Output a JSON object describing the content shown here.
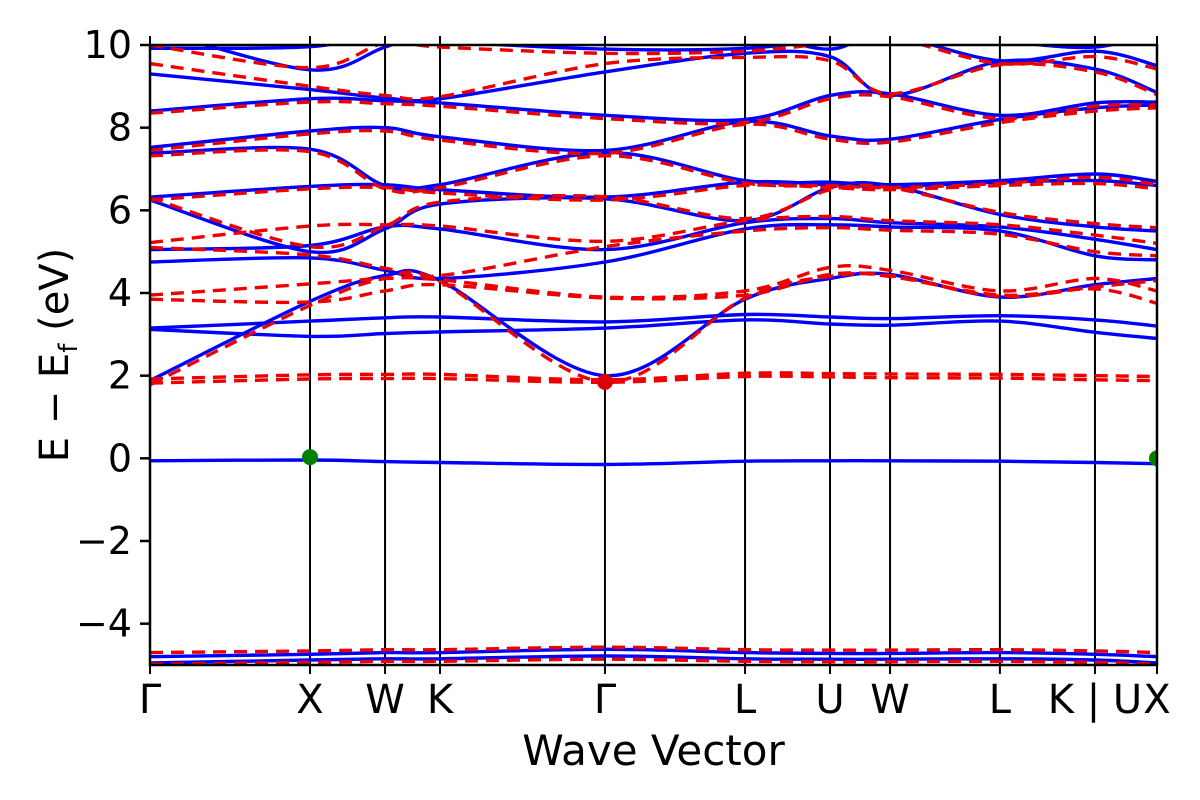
{
  "figure": {
    "xlabel": "Wave Vector",
    "ylabel_prefix": "E − E",
    "ylabel_sub": "f",
    "ylabel_suffix": " (eV)"
  },
  "chart_data": {
    "type": "line",
    "title": "",
    "xlabel": "Wave Vector",
    "ylabel": "E − E_f (eV)",
    "ylim": [
      -5,
      10
    ],
    "yticks": [
      10,
      8,
      6,
      4,
      2,
      0,
      -2,
      -4
    ],
    "ytick_labels": [
      "10",
      "8",
      "6",
      "4",
      "2",
      "0",
      "−2",
      "−4"
    ],
    "k_labels": [
      "Γ",
      "X",
      "W",
      "K",
      "Γ",
      "L",
      "U",
      "W",
      "L",
      "K | U",
      "X"
    ],
    "k_positions": [
      0,
      0.1589,
      0.2334,
      0.288,
      0.4518,
      0.5909,
      0.6753,
      0.7349,
      0.844,
      0.9384,
      1.0
    ],
    "grid": "vertical-lines-at-k-points",
    "legend": "none",
    "colors": {
      "solid_bands": "#0000ff",
      "dashed_bands": "#ee0000",
      "marker_green": "#008000",
      "marker_red": "#dd0000",
      "axis": "#000000"
    },
    "series": [
      {
        "name": "bands-solid-blue",
        "style": "solid",
        "bands": [
          [
            -4.95,
            -4.88,
            -4.85,
            -4.85,
            -4.78,
            -4.85,
            -4.86,
            -4.86,
            -4.85,
            -4.88,
            -4.95
          ],
          [
            -4.8,
            -4.74,
            -4.7,
            -4.7,
            -4.62,
            -4.7,
            -4.72,
            -4.72,
            -4.7,
            -4.74,
            -4.8
          ],
          [
            -0.06,
            -0.04,
            -0.08,
            -0.1,
            -0.15,
            -0.07,
            -0.06,
            -0.06,
            -0.07,
            -0.1,
            -0.13
          ],
          [
            3.12,
            2.95,
            3.02,
            3.06,
            3.15,
            3.35,
            3.25,
            3.22,
            3.32,
            3.05,
            2.9
          ],
          [
            3.15,
            3.32,
            3.4,
            3.42,
            3.3,
            3.48,
            3.42,
            3.38,
            3.45,
            3.35,
            3.2
          ],
          [
            1.88,
            3.8,
            4.42,
            4.3,
            2.0,
            3.85,
            4.35,
            4.45,
            3.9,
            4.2,
            4.35
          ],
          [
            4.75,
            4.85,
            4.55,
            4.35,
            4.75,
            5.55,
            5.65,
            5.6,
            5.5,
            4.9,
            4.8
          ],
          [
            5.05,
            5.15,
            5.6,
            5.55,
            5.05,
            5.7,
            5.8,
            5.7,
            5.6,
            5.3,
            5.05
          ],
          [
            6.25,
            5.0,
            5.55,
            6.15,
            6.28,
            5.75,
            6.55,
            6.6,
            5.9,
            5.6,
            5.5
          ],
          [
            6.32,
            6.58,
            6.62,
            6.5,
            6.32,
            6.68,
            6.62,
            6.58,
            6.68,
            6.72,
            6.6
          ],
          [
            7.38,
            7.48,
            6.6,
            6.62,
            7.4,
            6.72,
            6.68,
            6.62,
            6.72,
            6.88,
            6.7
          ],
          [
            7.52,
            7.92,
            8.0,
            7.78,
            7.45,
            8.15,
            7.8,
            7.72,
            8.2,
            8.48,
            8.55
          ],
          [
            8.4,
            8.7,
            8.65,
            8.6,
            8.3,
            8.2,
            8.78,
            8.82,
            8.3,
            8.6,
            8.62
          ],
          [
            9.3,
            8.92,
            8.72,
            8.7,
            9.35,
            9.8,
            9.72,
            8.78,
            9.6,
            9.42,
            8.85
          ],
          [
            9.92,
            9.96,
            10.3,
            10.1,
            9.9,
            9.92,
            10.15,
            10.25,
            9.62,
            9.85,
            9.5
          ],
          [
            10.4,
            9.4,
            9.95,
            10.35,
            10.45,
            10.3,
            9.9,
            10.4,
            10.1,
            9.95,
            10.35
          ]
        ]
      },
      {
        "name": "bands-dashed-red",
        "style": "dashed",
        "bands": [
          [
            -4.7,
            -4.66,
            -4.63,
            -4.63,
            -4.57,
            -4.63,
            -4.64,
            -4.64,
            -4.63,
            -4.66,
            -4.7
          ],
          [
            -4.98,
            -4.94,
            -4.91,
            -4.91,
            -4.86,
            -4.91,
            -4.92,
            -4.92,
            -4.91,
            -4.94,
            -4.98
          ],
          [
            1.82,
            1.92,
            1.93,
            1.93,
            1.84,
            1.98,
            1.97,
            1.95,
            1.94,
            1.9,
            1.88
          ],
          [
            1.92,
            2.02,
            2.03,
            2.03,
            1.9,
            2.06,
            2.05,
            2.04,
            2.03,
            2.0,
            1.98
          ],
          [
            1.78,
            3.7,
            4.35,
            4.28,
            1.85,
            3.88,
            4.4,
            4.42,
            3.92,
            4.15,
            4.3
          ],
          [
            3.85,
            3.78,
            4.05,
            4.2,
            3.88,
            3.95,
            4.45,
            4.4,
            3.95,
            4.1,
            3.75
          ],
          [
            3.95,
            4.22,
            4.35,
            4.32,
            3.9,
            4.05,
            4.62,
            4.55,
            4.05,
            4.35,
            4.05
          ],
          [
            5.1,
            4.92,
            4.6,
            4.42,
            5.12,
            5.5,
            5.58,
            5.52,
            5.42,
            5.0,
            4.9
          ],
          [
            5.22,
            5.62,
            5.65,
            5.62,
            5.25,
            5.75,
            5.85,
            5.75,
            5.65,
            5.4,
            5.2
          ],
          [
            6.3,
            5.12,
            5.62,
            6.2,
            6.33,
            5.8,
            6.5,
            6.55,
            5.95,
            5.68,
            5.58
          ],
          [
            6.25,
            6.52,
            6.55,
            6.42,
            6.25,
            6.6,
            6.55,
            6.5,
            6.6,
            6.65,
            6.52
          ],
          [
            7.32,
            7.42,
            6.52,
            6.55,
            7.32,
            6.66,
            6.6,
            6.55,
            6.65,
            6.8,
            6.62
          ],
          [
            7.45,
            7.85,
            7.92,
            7.7,
            7.38,
            8.08,
            7.72,
            7.65,
            8.12,
            8.4,
            8.48
          ],
          [
            8.35,
            8.62,
            8.58,
            8.52,
            8.22,
            8.12,
            8.7,
            8.75,
            8.22,
            8.52,
            8.55
          ],
          [
            9.55,
            9.0,
            8.78,
            8.75,
            9.55,
            9.7,
            9.62,
            8.82,
            9.52,
            9.35,
            8.8
          ],
          [
            10.0,
            9.45,
            10.05,
            9.95,
            9.8,
            9.85,
            10.05,
            10.18,
            9.55,
            9.72,
            9.42
          ]
        ]
      }
    ],
    "markers": [
      {
        "x": 0.1589,
        "y": 0.03,
        "color": "#008000"
      },
      {
        "x": 1.0,
        "y": 0.0,
        "color": "#008000"
      },
      {
        "x": 0.4518,
        "y": 1.85,
        "color": "#dd0000"
      }
    ]
  }
}
